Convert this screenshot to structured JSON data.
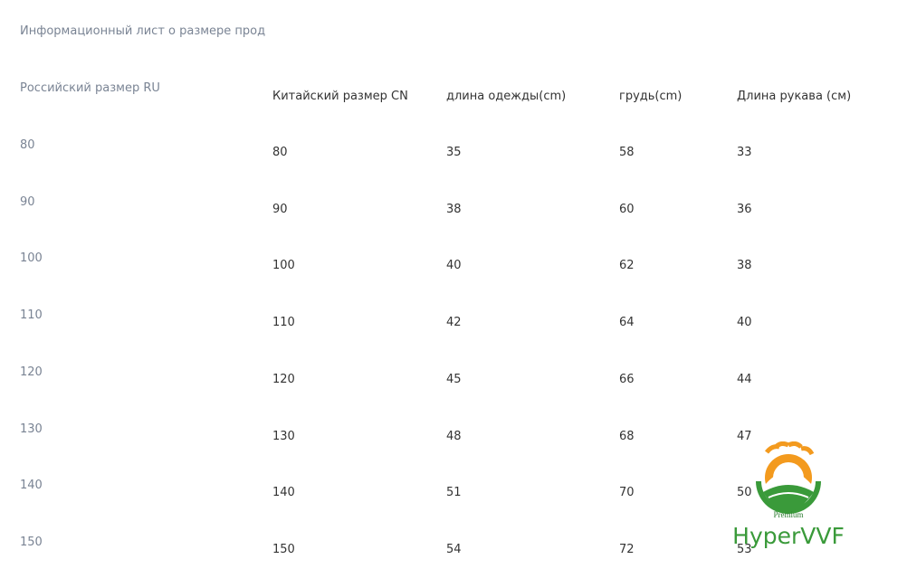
{
  "title": "Информационный лист о размере прод",
  "table": {
    "header": [
      "Российский размер RU",
      "Китайский размер CN",
      "длина одежды(cm)",
      "грудь(cm)",
      "Длина рукава (cм)"
    ],
    "rows": [
      [
        80,
        80,
        35,
        58,
        33
      ],
      [
        90,
        90,
        38,
        60,
        36
      ],
      [
        100,
        100,
        40,
        62,
        38
      ],
      [
        110,
        110,
        42,
        64,
        40
      ],
      [
        120,
        120,
        45,
        66,
        44
      ],
      [
        130,
        130,
        48,
        68,
        47
      ],
      [
        140,
        140,
        51,
        70,
        50
      ],
      [
        150,
        150,
        54,
        72,
        53
      ]
    ]
  },
  "logo": {
    "badge": "Premium",
    "name": "HyperVVF"
  }
}
